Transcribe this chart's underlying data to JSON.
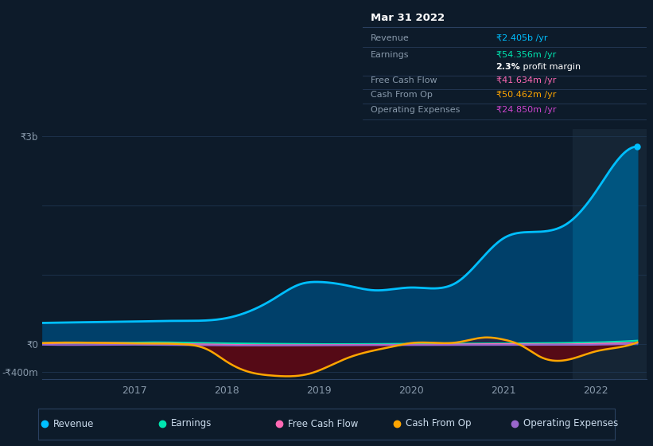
{
  "bg_color": "#0d1b2a",
  "plot_bg_color": "#0d1b2a",
  "highlight_bg": "#152535",
  "series": {
    "revenue": {
      "color": "#00bfff",
      "fill_color": "#00406a",
      "label": "Revenue"
    },
    "earnings": {
      "color": "#00e5b0",
      "label": "Earnings"
    },
    "free_cash_flow": {
      "color": "#ff69b4",
      "label": "Free Cash Flow"
    },
    "cash_from_op": {
      "color": "#ffa500",
      "label": "Cash From Op"
    },
    "operating_expenses": {
      "color": "#9966cc",
      "label": "Operating Expenses"
    }
  },
  "legend_items": [
    {
      "label": "Revenue",
      "color": "#00bfff"
    },
    {
      "label": "Earnings",
      "color": "#00e5b0"
    },
    {
      "label": "Free Cash Flow",
      "color": "#ff69b4"
    },
    {
      "label": "Cash From Op",
      "color": "#ffa500"
    },
    {
      "label": "Operating Expenses",
      "color": "#9966cc"
    }
  ],
  "ylim": [
    -500,
    3100
  ],
  "xlim": [
    2016.0,
    2022.55
  ],
  "yticks": [
    -400,
    0,
    3000
  ],
  "ytick_labels": [
    "-₹400m",
    "₹0",
    "₹3b"
  ],
  "xtick_positions": [
    2017,
    2018,
    2019,
    2020,
    2021,
    2022
  ],
  "highlight_x_start": 2021.75,
  "grid_color": "#1e3550",
  "grid_linewidth": 0.6
}
